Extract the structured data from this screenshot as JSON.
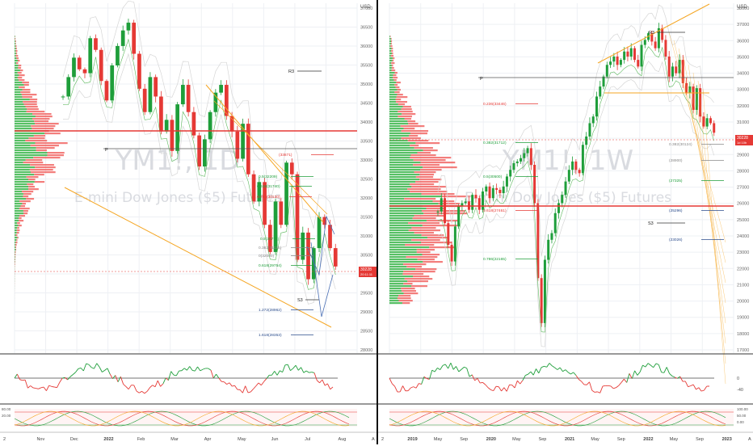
{
  "colors": {
    "up": "#1e9e3a",
    "down": "#e53935",
    "orange": "#f5a623",
    "grid": "#eef0f4",
    "navy": "#2b4c8c",
    "price_tag": "#e53935",
    "profile_up": "#39b54a",
    "profile_down": "#ef5350"
  },
  "left": {
    "watermark": "YM1!, 1D",
    "watermark_sub": "E-mini Dow Jones ($5) Futures",
    "price_axis_label": "USD",
    "axis_ticks": [
      "2",
      "Nov",
      "Dec",
      "2022",
      "Feb",
      "Mar",
      "Apr",
      "May",
      "Jun",
      "Jul",
      "Aug",
      "A"
    ],
    "y_ticks": [
      "37000",
      "36500",
      "36000",
      "35500",
      "35000",
      "34500",
      "34000",
      "33500",
      "33000",
      "32500",
      "32000",
      "31500",
      "31000",
      "30500",
      "30000",
      "29500",
      "29000",
      "28500",
      "28000"
    ],
    "price_tag": "30228",
    "price_tag_sub": "20:11:11",
    "pivots": {
      "R3": "R3",
      "P": "P",
      "S3": "S3"
    },
    "fib_labels": [
      "(33871)",
      "0.5(32209)",
      "0.618(31740)",
      "0.786(30120)",
      "0.5(30776)",
      "0.618(29754)",
      "1.272(28962)",
      "1.618(28353)",
      "0.382(31125)",
      "0(32000)"
    ],
    "osc_ticks": [
      "",
      ""
    ],
    "stoch_ticks": [
      "80.00",
      "20.00"
    ]
  },
  "right": {
    "watermark": "YM1!, 1W",
    "watermark_sub": "E-mini Dow Jones ($5) Futures",
    "price_axis_label": "USD",
    "axis_ticks": [
      "2",
      "2019",
      "May",
      "Sep",
      "2020",
      "May",
      "Sep",
      "2021",
      "May",
      "Sep",
      "2022",
      "May",
      "Sep",
      "2023",
      "A"
    ],
    "y_ticks": [
      "38000",
      "37000",
      "36000",
      "35000",
      "34000",
      "33000",
      "32000",
      "31000",
      "30000",
      "29000",
      "28000",
      "27000",
      "26000",
      "25000",
      "24000",
      "23000",
      "22000",
      "21000",
      "20000",
      "19000",
      "18000",
      "17000"
    ],
    "price_tag": "30228",
    "price_tag_sub": "1d 10h",
    "pivots": {
      "R3": "R3",
      "P": "P",
      "S3": "S3"
    },
    "fib_labels": [
      "0.236(33446)",
      "0.382(31712)",
      "0.5(30500)",
      "0.618(27461)",
      "0.786(22165)",
      "(27325)",
      "(25296)",
      "(23026)",
      "(28900)",
      "0.382(30124)"
    ],
    "osc_ticks": [
      "0",
      "-40"
    ],
    "stoch_ticks": [
      "100.00",
      "50.00",
      "0.00"
    ]
  },
  "chart_data": [
    {
      "type": "candlestick",
      "title": "YM1!, 1D",
      "subtitle": "E-mini Dow Jones ($5) Futures",
      "x_range": [
        "Oct 2021",
        "Aug 2022"
      ],
      "ylim": [
        28000,
        37000
      ],
      "y_unit": "USD",
      "last": 30228,
      "close_path": [
        34600,
        35100,
        35600,
        35300,
        35200,
        36100,
        35800,
        35000,
        34500,
        35400,
        35900,
        36300,
        36500,
        35700,
        34800,
        34200,
        35100,
        34600,
        33700,
        34000,
        33200,
        34400,
        34900,
        34200,
        33600,
        32800,
        33500,
        34200,
        34700,
        34900,
        34100,
        33700,
        33000,
        33900,
        32600,
        31900,
        32400,
        31300,
        30600,
        31900,
        31300,
        32900,
        32600,
        30400,
        31100,
        29900,
        30700,
        31500,
        31300,
        30700,
        30228
      ]
    },
    {
      "type": "candlestick",
      "title": "YM1!, 1W",
      "subtitle": "E-mini Dow Jones ($5) Futures",
      "x_range": [
        "Oct 2018",
        "Jul 2022"
      ],
      "ylim": [
        17000,
        38000
      ],
      "y_unit": "USD",
      "last": 30228,
      "close_path": [
        25500,
        26300,
        24800,
        23500,
        22500,
        24600,
        25800,
        26000,
        26100,
        25600,
        26500,
        26300,
        25600,
        26700,
        27000,
        26300,
        26900,
        26800,
        26600,
        27000,
        27600,
        28000,
        28400,
        28500,
        28700,
        29000,
        29300,
        28300,
        26000,
        21500,
        18800,
        22600,
        23800,
        24200,
        25400,
        26000,
        26500,
        27300,
        28000,
        28500,
        28000,
        27800,
        29500,
        30000,
        30800,
        31200,
        32400,
        33000,
        33600,
        34300,
        34500,
        34800,
        34300,
        34600,
        35100,
        34800,
        35300,
        34600,
        34200,
        35500,
        35800,
        36200,
        35700,
        35300,
        36500,
        35800,
        34800,
        33600,
        34200,
        33800,
        34600,
        33200,
        32600,
        33000,
        31600,
        32900,
        31200,
        30600,
        31100,
        30800,
        30228
      ]
    }
  ]
}
